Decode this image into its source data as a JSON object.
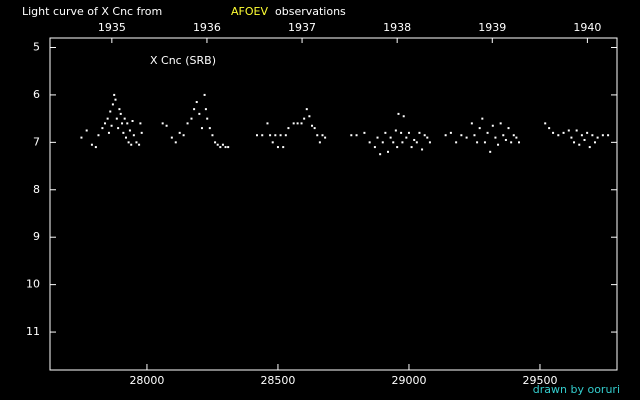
{
  "chart_data": {
    "type": "scatter",
    "title": "Light curve of X Cnc from",
    "title_source": "AFOEV",
    "title_suffix": "observations",
    "annotation": "X Cnc (SRB)",
    "credit": "drawn by ooruri",
    "color": "#ffffff",
    "title_source_color": "#ffff33",
    "credit_color": "#33cccc",
    "xlim": [
      27630,
      29794
    ],
    "xticks": [
      28000,
      28500,
      29000,
      29500
    ],
    "x2ticks": [
      {
        "value": 27866,
        "label": "1935"
      },
      {
        "value": 28229,
        "label": "1936"
      },
      {
        "value": 28592,
        "label": "1937"
      },
      {
        "value": 28955,
        "label": "1938"
      },
      {
        "value": 29318,
        "label": "1939"
      },
      {
        "value": 29681,
        "label": "1940"
      }
    ],
    "ylim": [
      4.8,
      11.8
    ],
    "y_inverted": true,
    "yticks": [
      5,
      6,
      7,
      8,
      9,
      10,
      11
    ],
    "grid": false,
    "x": [
      27750,
      27770,
      27790,
      27805,
      27815,
      27830,
      27840,
      27850,
      27855,
      27860,
      27865,
      27870,
      27875,
      27880,
      27885,
      27890,
      27895,
      27900,
      27905,
      27910,
      27915,
      27920,
      27925,
      27930,
      27935,
      27940,
      27945,
      27950,
      27960,
      27970,
      27975,
      27980,
      28060,
      28075,
      28095,
      28110,
      28125,
      28140,
      28155,
      28170,
      28180,
      28190,
      28200,
      28210,
      28220,
      28225,
      28230,
      28240,
      28250,
      28260,
      28270,
      28280,
      28290,
      28300,
      28310,
      28420,
      28440,
      28460,
      28470,
      28480,
      28490,
      28500,
      28510,
      28520,
      28530,
      28540,
      28560,
      28575,
      28590,
      28600,
      28610,
      28620,
      28630,
      28640,
      28650,
      28660,
      28670,
      28680,
      28780,
      28800,
      28830,
      28850,
      28870,
      28880,
      28890,
      28900,
      28910,
      28920,
      28930,
      28940,
      28950,
      28955,
      28960,
      28970,
      28975,
      28980,
      28990,
      29000,
      29010,
      29020,
      29030,
      29040,
      29050,
      29060,
      29070,
      29080,
      29140,
      29160,
      29180,
      29200,
      29220,
      29240,
      29250,
      29260,
      29270,
      29280,
      29290,
      29300,
      29310,
      29320,
      29330,
      29340,
      29350,
      29360,
      29370,
      29380,
      29390,
      29400,
      29410,
      29420,
      29520,
      29535,
      29550,
      29570,
      29590,
      29610,
      29620,
      29630,
      29640,
      29650,
      29660,
      29670,
      29680,
      29690,
      29700,
      29710,
      29720,
      29740,
      29760
    ],
    "values": [
      6.9,
      6.75,
      7.05,
      7.1,
      6.85,
      6.7,
      6.6,
      6.5,
      6.8,
      6.35,
      6.65,
      6.2,
      6.0,
      6.1,
      6.5,
      6.7,
      6.3,
      6.4,
      6.6,
      6.8,
      6.5,
      6.9,
      6.6,
      7.0,
      6.75,
      7.05,
      6.55,
      6.85,
      7.0,
      7.05,
      6.6,
      6.8,
      6.6,
      6.65,
      6.9,
      7.0,
      6.8,
      6.85,
      6.6,
      6.5,
      6.3,
      6.15,
      6.4,
      6.7,
      6.0,
      6.3,
      6.5,
      6.7,
      6.85,
      7.0,
      7.05,
      7.1,
      7.05,
      7.1,
      7.1,
      6.85,
      6.85,
      6.6,
      6.85,
      7.0,
      6.85,
      7.1,
      6.85,
      7.1,
      6.85,
      6.7,
      6.6,
      6.6,
      6.6,
      6.5,
      6.3,
      6.45,
      6.65,
      6.7,
      6.85,
      7.0,
      6.85,
      6.9,
      6.85,
      6.85,
      6.8,
      7.0,
      7.1,
      6.9,
      7.25,
      7.0,
      6.8,
      7.2,
      6.9,
      7.0,
      6.75,
      7.1,
      6.4,
      6.8,
      7.0,
      6.45,
      6.9,
      6.8,
      7.1,
      6.95,
      7.0,
      6.8,
      7.15,
      6.85,
      6.9,
      7.0,
      6.85,
      6.8,
      7.0,
      6.85,
      6.9,
      6.6,
      6.85,
      7.0,
      6.7,
      6.5,
      7.0,
      6.8,
      7.2,
      6.65,
      6.9,
      7.05,
      6.6,
      6.85,
      6.95,
      6.7,
      7.0,
      6.85,
      6.9,
      7.0,
      6.6,
      6.7,
      6.8,
      6.85,
      6.8,
      6.75,
      6.9,
      7.0,
      6.75,
      7.05,
      6.85,
      6.95,
      6.8,
      7.1,
      6.85,
      7.0,
      6.9,
      6.85,
      6.85
    ]
  }
}
